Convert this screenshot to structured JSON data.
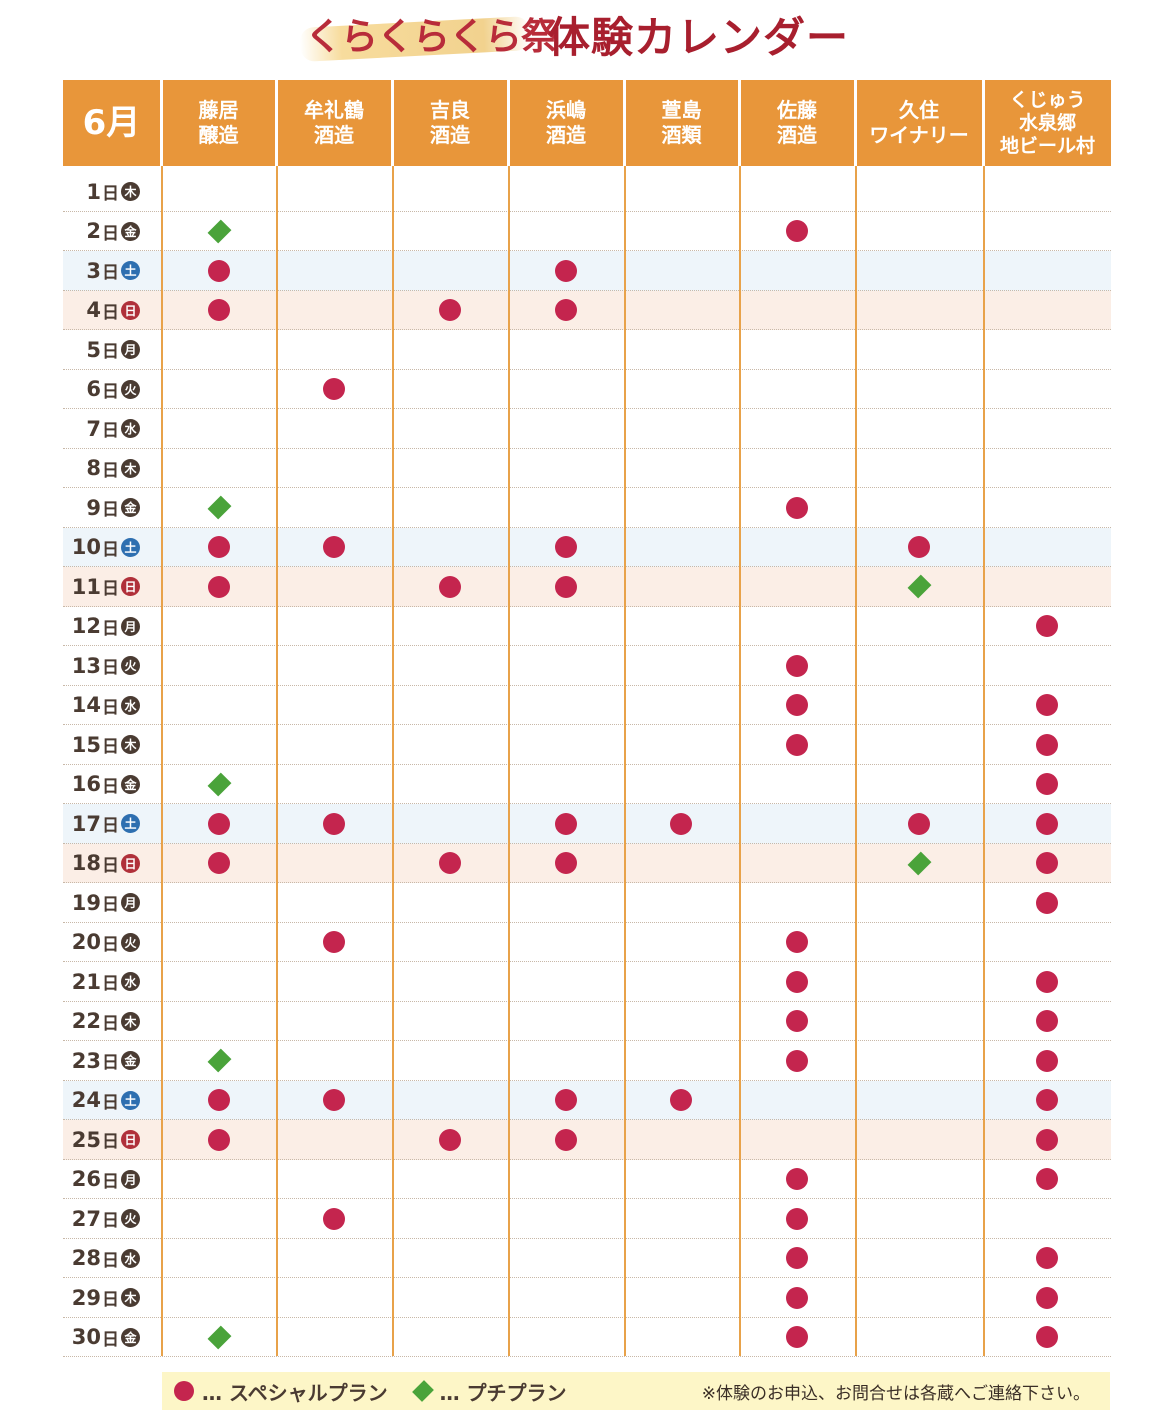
{
  "title": {
    "sub": "くらくらくら祭",
    "main": "体験カレンダー"
  },
  "header": {
    "month": "6月",
    "columns": [
      "藤居\n醸造",
      "牟礼鶴\n酒造",
      "吉良\n酒造",
      "浜嶋\n酒造",
      "萱島\n酒類",
      "佐藤\n酒造",
      "久住\nワイナリー",
      "くじゅう\n水泉郷\n地ビール村"
    ]
  },
  "colors": {
    "header_bg": "#e8963a",
    "special": "#c4254e",
    "petit": "#4aa33a",
    "saturday": "#2e6fb0",
    "sunday": "#b0303a"
  },
  "day_suffix": "日",
  "rows": [
    {
      "day": "1",
      "dow": "木",
      "marks": [
        "",
        "",
        "",
        "",
        "",
        "",
        "",
        ""
      ]
    },
    {
      "day": "2",
      "dow": "金",
      "marks": [
        "petit",
        "",
        "",
        "",
        "",
        "special",
        "",
        ""
      ]
    },
    {
      "day": "3",
      "dow": "土",
      "marks": [
        "special",
        "",
        "",
        "special",
        "",
        "",
        "",
        ""
      ]
    },
    {
      "day": "4",
      "dow": "日",
      "marks": [
        "special",
        "",
        "special",
        "special",
        "",
        "",
        "",
        ""
      ]
    },
    {
      "day": "5",
      "dow": "月",
      "marks": [
        "",
        "",
        "",
        "",
        "",
        "",
        "",
        ""
      ]
    },
    {
      "day": "6",
      "dow": "火",
      "marks": [
        "",
        "special",
        "",
        "",
        "",
        "",
        "",
        ""
      ]
    },
    {
      "day": "7",
      "dow": "水",
      "marks": [
        "",
        "",
        "",
        "",
        "",
        "",
        "",
        ""
      ]
    },
    {
      "day": "8",
      "dow": "木",
      "marks": [
        "",
        "",
        "",
        "",
        "",
        "",
        "",
        ""
      ]
    },
    {
      "day": "9",
      "dow": "金",
      "marks": [
        "petit",
        "",
        "",
        "",
        "",
        "special",
        "",
        ""
      ]
    },
    {
      "day": "10",
      "dow": "土",
      "marks": [
        "special",
        "special",
        "",
        "special",
        "",
        "",
        "special",
        ""
      ]
    },
    {
      "day": "11",
      "dow": "日",
      "marks": [
        "special",
        "",
        "special",
        "special",
        "",
        "",
        "petit",
        ""
      ]
    },
    {
      "day": "12",
      "dow": "月",
      "marks": [
        "",
        "",
        "",
        "",
        "",
        "",
        "",
        "special"
      ]
    },
    {
      "day": "13",
      "dow": "火",
      "marks": [
        "",
        "",
        "",
        "",
        "",
        "special",
        "",
        ""
      ]
    },
    {
      "day": "14",
      "dow": "水",
      "marks": [
        "",
        "",
        "",
        "",
        "",
        "special",
        "",
        "special"
      ]
    },
    {
      "day": "15",
      "dow": "木",
      "marks": [
        "",
        "",
        "",
        "",
        "",
        "special",
        "",
        "special"
      ]
    },
    {
      "day": "16",
      "dow": "金",
      "marks": [
        "petit",
        "",
        "",
        "",
        "",
        "",
        "",
        "special"
      ]
    },
    {
      "day": "17",
      "dow": "土",
      "marks": [
        "special",
        "special",
        "",
        "special",
        "special",
        "",
        "special",
        "special"
      ]
    },
    {
      "day": "18",
      "dow": "日",
      "marks": [
        "special",
        "",
        "special",
        "special",
        "",
        "",
        "petit",
        "special"
      ]
    },
    {
      "day": "19",
      "dow": "月",
      "marks": [
        "",
        "",
        "",
        "",
        "",
        "",
        "",
        "special"
      ]
    },
    {
      "day": "20",
      "dow": "火",
      "marks": [
        "",
        "special",
        "",
        "",
        "",
        "special",
        "",
        ""
      ]
    },
    {
      "day": "21",
      "dow": "水",
      "marks": [
        "",
        "",
        "",
        "",
        "",
        "special",
        "",
        "special"
      ]
    },
    {
      "day": "22",
      "dow": "木",
      "marks": [
        "",
        "",
        "",
        "",
        "",
        "special",
        "",
        "special"
      ]
    },
    {
      "day": "23",
      "dow": "金",
      "marks": [
        "petit",
        "",
        "",
        "",
        "",
        "special",
        "",
        "special"
      ]
    },
    {
      "day": "24",
      "dow": "土",
      "marks": [
        "special",
        "special",
        "",
        "special",
        "special",
        "",
        "",
        "special"
      ]
    },
    {
      "day": "25",
      "dow": "日",
      "marks": [
        "special",
        "",
        "special",
        "special",
        "",
        "",
        "",
        "special"
      ]
    },
    {
      "day": "26",
      "dow": "月",
      "marks": [
        "",
        "",
        "",
        "",
        "",
        "special",
        "",
        "special"
      ]
    },
    {
      "day": "27",
      "dow": "火",
      "marks": [
        "",
        "special",
        "",
        "",
        "",
        "special",
        "",
        ""
      ]
    },
    {
      "day": "28",
      "dow": "水",
      "marks": [
        "",
        "",
        "",
        "",
        "",
        "special",
        "",
        "special"
      ]
    },
    {
      "day": "29",
      "dow": "木",
      "marks": [
        "",
        "",
        "",
        "",
        "",
        "special",
        "",
        "special"
      ]
    },
    {
      "day": "30",
      "dow": "金",
      "marks": [
        "petit",
        "",
        "",
        "",
        "",
        "special",
        "",
        "special"
      ]
    }
  ],
  "legend": {
    "special_label": "… スペシャルプラン",
    "petit_label": "… プチプラン",
    "note": "※体験のお申込、お問合せは各蔵へご連絡下さい。"
  }
}
